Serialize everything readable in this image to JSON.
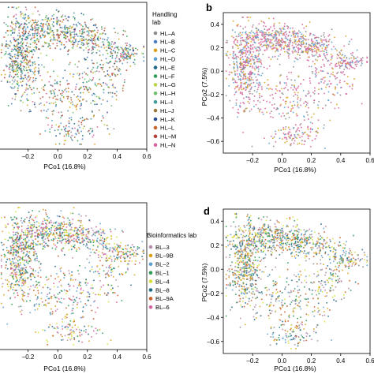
{
  "panels": [
    {
      "letter": "",
      "legend_title": [
        "Handling",
        "lab"
      ],
      "legend": [
        {
          "label": "HL–A",
          "color": "#8c8c8c"
        },
        {
          "label": "HL–B",
          "color": "#4a7fc1"
        },
        {
          "label": "HL–C",
          "color": "#d9a21b"
        },
        {
          "label": "HL–D",
          "color": "#5aa0d0"
        },
        {
          "label": "HL–E",
          "color": "#1e6b86"
        },
        {
          "label": "HL–F",
          "color": "#2e9c57"
        },
        {
          "label": "HL–G",
          "color": "#b9d64a"
        },
        {
          "label": "HL–H",
          "color": "#6fbf6f"
        },
        {
          "label": "HL–I",
          "color": "#3f9a9a"
        },
        {
          "label": "HL–J",
          "color": "#9a7a3c"
        },
        {
          "label": "HL–K",
          "color": "#2b4d8f"
        },
        {
          "label": "HL–L",
          "color": "#c7612a"
        },
        {
          "label": "HL–M",
          "color": "#b5403a"
        },
        {
          "label": "HL–N",
          "color": "#d6659f"
        }
      ]
    },
    {
      "letter": "b",
      "ylabel": "PCo2 (7.5%)",
      "y_ticks": [
        "0.4",
        "0.2",
        "0.0",
        "–0.2",
        "–0.4",
        "–0.6"
      ],
      "palette": [
        "#d6659f",
        "#d6659f",
        "#d6659f",
        "#5aa0d0",
        "#8c8c8c",
        "#d9a21b"
      ]
    },
    {
      "letter": "",
      "legend_title": [
        "Bioinformatics lab"
      ],
      "legend": [
        {
          "label": "BL–3",
          "color": "#b58bb0"
        },
        {
          "label": "BL–9B",
          "color": "#d9a21b"
        },
        {
          "label": "BL–2",
          "color": "#5aa0d0"
        },
        {
          "label": "BL–1",
          "color": "#2e9c57"
        },
        {
          "label": "BL–4",
          "color": "#d7e03a"
        },
        {
          "label": "BL–8",
          "color": "#1e6b86"
        },
        {
          "label": "BL–9A",
          "color": "#c7612a"
        },
        {
          "label": "BL–6",
          "color": "#d6659f"
        }
      ]
    },
    {
      "letter": "d",
      "ylabel": "PCo2 (7.5%)",
      "y_ticks": [
        "0.4",
        "0.2",
        "0.0",
        "–0.2",
        "–0.4",
        "–0.6"
      ],
      "palette": [
        "#d9a21b",
        "#2e9c57",
        "#1e6b86",
        "#c7612a",
        "#d7e03a",
        "#5aa0d0",
        "#b58bb0",
        "#8c8c8c"
      ]
    }
  ],
  "x_ticks_left": [
    "–0.2",
    "0.0",
    "0.2",
    "0.4",
    "0.6"
  ],
  "x_ticks_right": [
    "–0.2",
    "0.0",
    "0.2",
    "0.4",
    "0.6"
  ],
  "xlabel": "PCo1 (16.8%)",
  "chart_data": [
    {
      "type": "scatter",
      "panel": "a",
      "xlabel": "PCo1 (16.8%)",
      "xlim": [
        -0.4,
        0.6
      ],
      "ylim": [
        -0.7,
        0.5
      ],
      "legend_title": "Handling lab",
      "series": [
        {
          "name": "HL–A"
        },
        {
          "name": "HL–B"
        },
        {
          "name": "HL–C"
        },
        {
          "name": "HL–D"
        },
        {
          "name": "HL–E"
        },
        {
          "name": "HL–F"
        },
        {
          "name": "HL–G"
        },
        {
          "name": "HL–H"
        },
        {
          "name": "HL–I"
        },
        {
          "name": "HL–J"
        },
        {
          "name": "HL–K"
        },
        {
          "name": "HL–L"
        },
        {
          "name": "HL–M"
        },
        {
          "name": "HL–N"
        }
      ]
    },
    {
      "type": "scatter",
      "panel": "b",
      "xlabel": "PCo1 (16.8%)",
      "ylabel": "PCo2 (7.5%)",
      "xlim": [
        -0.4,
        0.6
      ],
      "ylim": [
        -0.7,
        0.5
      ]
    },
    {
      "type": "scatter",
      "panel": "c",
      "xlabel": "PCo1 (16.8%)",
      "xlim": [
        -0.4,
        0.6
      ],
      "ylim": [
        -0.7,
        0.5
      ],
      "legend_title": "Bioinformatics lab",
      "series": [
        {
          "name": "BL–3"
        },
        {
          "name": "BL–9B"
        },
        {
          "name": "BL–2"
        },
        {
          "name": "BL–1"
        },
        {
          "name": "BL–4"
        },
        {
          "name": "BL–8"
        },
        {
          "name": "BL–9A"
        },
        {
          "name": "BL–6"
        }
      ]
    },
    {
      "type": "scatter",
      "panel": "d",
      "xlabel": "PCo1 (16.8%)",
      "ylabel": "PCo2 (7.5%)",
      "xlim": [
        -0.4,
        0.6
      ],
      "ylim": [
        -0.7,
        0.5
      ]
    }
  ]
}
